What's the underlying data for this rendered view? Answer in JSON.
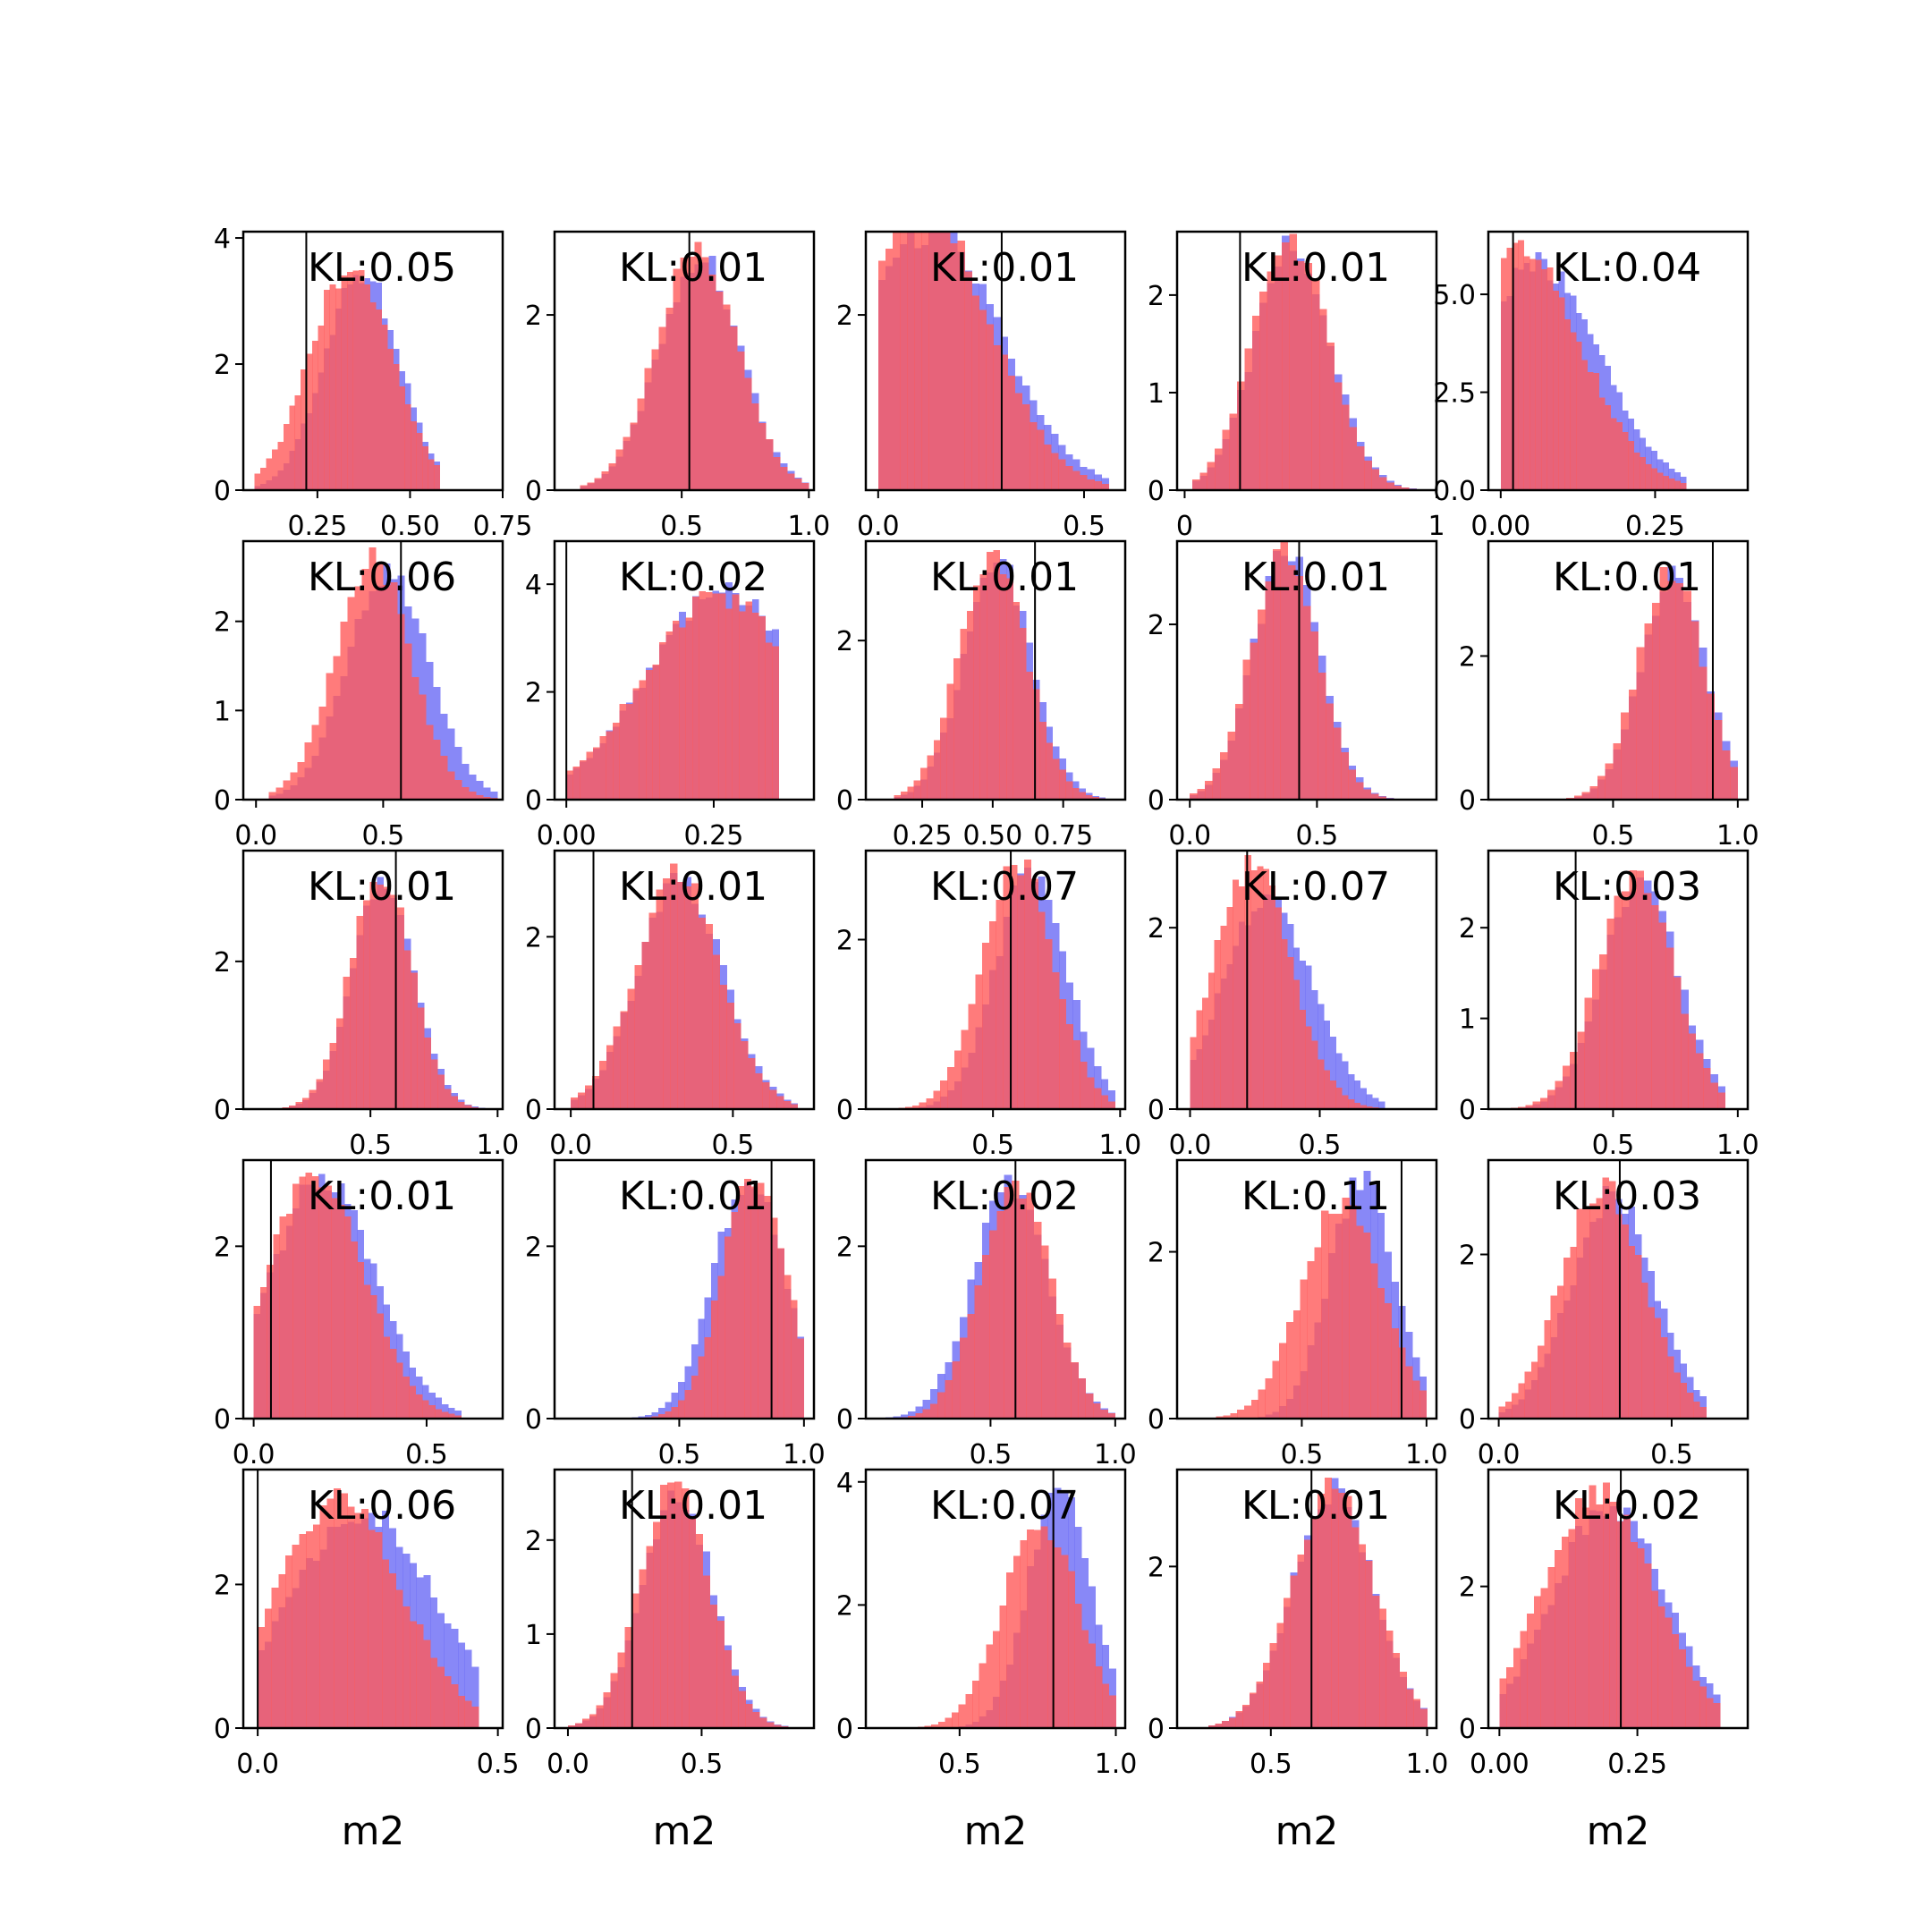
{
  "figure": {
    "colors": {
      "series_a": "#6a6af5",
      "series_b": "#ff5a5a",
      "overlap": "#bf3f77",
      "marker": "#000000"
    }
  },
  "chart_data": {
    "type": "histogram-grid",
    "rows": 5,
    "cols": 5,
    "xlabel": "m2",
    "series": [
      {
        "name": "",
        "color": "#6a6af5",
        "alpha": 0.5
      },
      {
        "name": "",
        "color": "#ff5a5a",
        "alpha": 0.5
      }
    ],
    "panels": [
      {
        "kl": "KL:0.05",
        "xlim": [
          0.05,
          0.75
        ],
        "ylim": [
          0,
          4.1
        ],
        "xticks": [
          0.25,
          0.5,
          0.75
        ],
        "xtick_labels": [
          "0.25",
          "0.50",
          "0.75"
        ],
        "yticks": [
          0,
          2,
          4
        ],
        "ytick_labels": [
          "0",
          "2",
          "4"
        ],
        "marker": 0.22,
        "a": {
          "mu": 0.37,
          "sd": 0.1,
          "peak": 3.5,
          "lo": 0.08,
          "hi": 0.58
        },
        "b": {
          "mu": 0.34,
          "sd": 0.11,
          "peak": 3.6,
          "lo": 0.08,
          "hi": 0.58
        }
      },
      {
        "kl": "KL:0.01",
        "xlim": [
          0.0,
          1.02
        ],
        "ylim": [
          0,
          2.95
        ],
        "xticks": [
          0.5,
          1.0
        ],
        "xtick_labels": [
          "0.5",
          "1.0"
        ],
        "yticks": [
          0,
          2
        ],
        "ytick_labels": [
          "0",
          "2"
        ],
        "marker": 0.53,
        "a": {
          "mu": 0.57,
          "sd": 0.16,
          "peak": 2.7,
          "lo": 0.1,
          "hi": 1.0
        },
        "b": {
          "mu": 0.56,
          "sd": 0.16,
          "peak": 2.75,
          "lo": 0.1,
          "hi": 1.0
        }
      },
      {
        "kl": "KL:0.01",
        "xlim": [
          -0.03,
          0.6
        ],
        "ylim": [
          0,
          2.95
        ],
        "xticks": [
          0.0,
          0.5
        ],
        "xtick_labels": [
          "0.0",
          "0.5"
        ],
        "yticks": [
          2
        ],
        "ytick_labels": [
          "2"
        ],
        "marker": 0.3,
        "a": {
          "mu": 0.13,
          "sd": 0.17,
          "peak": 3.0,
          "lo": 0.0,
          "hi": 0.56
        },
        "b": {
          "mu": 0.11,
          "sd": 0.16,
          "peak": 3.2,
          "lo": 0.0,
          "hi": 0.56
        }
      },
      {
        "kl": "KL:0.01",
        "xlim": [
          -0.03,
          1.0
        ],
        "ylim": [
          0,
          2.65
        ],
        "xticks": [
          0.0,
          1.0
        ],
        "xtick_labels": [
          "0",
          "1"
        ],
        "yticks": [
          0,
          1,
          2
        ],
        "ytick_labels": [
          "0",
          "1",
          "2"
        ],
        "marker": 0.22,
        "a": {
          "mu": 0.43,
          "sd": 0.15,
          "peak": 2.55,
          "lo": 0.03,
          "hi": 0.98
        },
        "b": {
          "mu": 0.42,
          "sd": 0.15,
          "peak": 2.6,
          "lo": 0.03,
          "hi": 0.98
        }
      },
      {
        "kl": "KL:0.04",
        "xlim": [
          -0.02,
          0.4
        ],
        "ylim": [
          0,
          6.6
        ],
        "xticks": [
          0.0,
          0.25
        ],
        "xtick_labels": [
          "0.00",
          "0.25"
        ],
        "yticks": [
          0,
          2.5,
          5.0
        ],
        "ytick_labels": [
          "0.0",
          "2.5",
          "5.0"
        ],
        "marker": 0.02,
        "a": {
          "mu": 0.06,
          "sd": 0.1,
          "peak": 5.8,
          "lo": 0.0,
          "hi": 0.3
        },
        "b": {
          "mu": 0.03,
          "sd": 0.1,
          "peak": 6.2,
          "lo": 0.0,
          "hi": 0.3
        }
      },
      {
        "kl": "KL:0.06",
        "xlim": [
          -0.05,
          0.97
        ],
        "ylim": [
          0,
          2.9
        ],
        "xticks": [
          0.0,
          0.5
        ],
        "xtick_labels": [
          "0.0",
          "0.5"
        ],
        "yticks": [
          0,
          1,
          2
        ],
        "ytick_labels": [
          "0",
          "1",
          "2"
        ],
        "marker": 0.57,
        "a": {
          "mu": 0.52,
          "sd": 0.16,
          "peak": 2.55,
          "lo": 0.05,
          "hi": 0.95
        },
        "b": {
          "mu": 0.46,
          "sd": 0.15,
          "peak": 2.7,
          "lo": 0.05,
          "hi": 0.95
        }
      },
      {
        "kl": "KL:0.02",
        "xlim": [
          -0.02,
          0.42
        ],
        "ylim": [
          0,
          4.8
        ],
        "xticks": [
          0.0,
          0.25
        ],
        "xtick_labels": [
          "0.00",
          "0.25"
        ],
        "yticks": [
          0,
          2,
          4
        ],
        "ytick_labels": [
          "0",
          "2",
          "4"
        ],
        "marker": 0.0,
        "a": {
          "mu": 0.27,
          "sd": 0.13,
          "peak": 3.9,
          "lo": 0.0,
          "hi": 0.36
        },
        "b": {
          "mu": 0.26,
          "sd": 0.13,
          "peak": 3.8,
          "lo": 0.0,
          "hi": 0.36
        }
      },
      {
        "kl": "KL:0.01",
        "xlim": [
          0.05,
          0.97
        ],
        "ylim": [
          0,
          3.25
        ],
        "xticks": [
          0.25,
          0.5,
          0.75
        ],
        "xtick_labels": [
          "0.25",
          "0.50",
          "0.75"
        ],
        "yticks": [
          0,
          2
        ],
        "ytick_labels": [
          "0",
          "2"
        ],
        "marker": 0.65,
        "a": {
          "mu": 0.52,
          "sd": 0.12,
          "peak": 3.0,
          "lo": 0.15,
          "hi": 0.9
        },
        "b": {
          "mu": 0.5,
          "sd": 0.12,
          "peak": 3.1,
          "lo": 0.15,
          "hi": 0.9
        }
      },
      {
        "kl": "KL:0.01",
        "xlim": [
          -0.05,
          0.97
        ],
        "ylim": [
          0,
          2.95
        ],
        "xticks": [
          0.0,
          0.5
        ],
        "xtick_labels": [
          "0.0",
          "0.5"
        ],
        "yticks": [
          0,
          2
        ],
        "ytick_labels": [
          "0",
          "2"
        ],
        "marker": 0.43,
        "a": {
          "mu": 0.38,
          "sd": 0.13,
          "peak": 2.85,
          "lo": 0.0,
          "hi": 0.95
        },
        "b": {
          "mu": 0.37,
          "sd": 0.13,
          "peak": 2.9,
          "lo": 0.0,
          "hi": 0.95
        }
      },
      {
        "kl": "KL:0.01",
        "xlim": [
          0.0,
          1.04
        ],
        "ylim": [
          0,
          3.6
        ],
        "xticks": [
          0.5,
          1.0
        ],
        "xtick_labels": [
          "0.5",
          "1.0"
        ],
        "yticks": [
          0,
          2
        ],
        "ytick_labels": [
          "0",
          "2"
        ],
        "marker": 0.9,
        "a": {
          "mu": 0.74,
          "sd": 0.13,
          "peak": 3.15,
          "lo": 0.0,
          "hi": 1.0
        },
        "b": {
          "mu": 0.73,
          "sd": 0.13,
          "peak": 3.2,
          "lo": 0.0,
          "hi": 1.0
        }
      },
      {
        "kl": "KL:0.01",
        "xlim": [
          0.0,
          1.02
        ],
        "ylim": [
          0,
          3.5
        ],
        "xticks": [
          0.5,
          1.0
        ],
        "xtick_labels": [
          "0.5",
          "1.0"
        ],
        "yticks": [
          0,
          2
        ],
        "ytick_labels": [
          "0",
          "2"
        ],
        "marker": 0.6,
        "a": {
          "mu": 0.55,
          "sd": 0.12,
          "peak": 3.2,
          "lo": 0.1,
          "hi": 0.95
        },
        "b": {
          "mu": 0.54,
          "sd": 0.12,
          "peak": 3.25,
          "lo": 0.1,
          "hi": 0.95
        }
      },
      {
        "kl": "KL:0.01",
        "xlim": [
          -0.05,
          0.75
        ],
        "ylim": [
          0,
          3.0
        ],
        "xticks": [
          0.0,
          0.5
        ],
        "xtick_labels": [
          "0.0",
          "0.5"
        ],
        "yticks": [
          0,
          2
        ],
        "ytick_labels": [
          "0",
          "2"
        ],
        "marker": 0.07,
        "a": {
          "mu": 0.34,
          "sd": 0.13,
          "peak": 2.7,
          "lo": 0.0,
          "hi": 0.7
        },
        "b": {
          "mu": 0.33,
          "sd": 0.13,
          "peak": 2.75,
          "lo": 0.0,
          "hi": 0.7
        }
      },
      {
        "kl": "KL:0.07",
        "xlim": [
          0.0,
          1.02
        ],
        "ylim": [
          0,
          3.05
        ],
        "xticks": [
          0.5,
          1.0
        ],
        "xtick_labels": [
          "0.5",
          "1.0"
        ],
        "yticks": [
          0,
          2
        ],
        "ytick_labels": [
          "0",
          "2"
        ],
        "marker": 0.57,
        "a": {
          "mu": 0.65,
          "sd": 0.14,
          "peak": 2.85,
          "lo": 0.1,
          "hi": 0.98
        },
        "b": {
          "mu": 0.6,
          "sd": 0.14,
          "peak": 2.95,
          "lo": 0.1,
          "hi": 0.98
        }
      },
      {
        "kl": "KL:0.07",
        "xlim": [
          -0.05,
          0.95
        ],
        "ylim": [
          0,
          2.85
        ],
        "xticks": [
          0.0,
          0.5
        ],
        "xtick_labels": [
          "0.0",
          "0.5"
        ],
        "yticks": [
          0,
          2
        ],
        "ytick_labels": [
          "0",
          "2"
        ],
        "marker": 0.22,
        "a": {
          "mu": 0.3,
          "sd": 0.17,
          "peak": 2.35,
          "lo": 0.0,
          "hi": 0.75
        },
        "b": {
          "mu": 0.24,
          "sd": 0.15,
          "peak": 2.7,
          "lo": 0.0,
          "hi": 0.75
        }
      },
      {
        "kl": "KL:0.03",
        "xlim": [
          0.0,
          1.04
        ],
        "ylim": [
          0,
          2.85
        ],
        "xticks": [
          0.5,
          1.0
        ],
        "xtick_labels": [
          "0.5",
          "1.0"
        ],
        "yticks": [
          0,
          1,
          2
        ],
        "ytick_labels": [
          "0",
          "1",
          "2"
        ],
        "marker": 0.35,
        "a": {
          "mu": 0.61,
          "sd": 0.15,
          "peak": 2.55,
          "lo": 0.0,
          "hi": 0.95
        },
        "b": {
          "mu": 0.59,
          "sd": 0.15,
          "peak": 2.65,
          "lo": 0.0,
          "hi": 0.95
        }
      },
      {
        "kl": "KL:0.01",
        "xlim": [
          -0.03,
          0.72
        ],
        "ylim": [
          0,
          3.0
        ],
        "xticks": [
          0.0,
          0.5
        ],
        "xtick_labels": [
          "0.0",
          "0.5"
        ],
        "yticks": [
          0,
          2
        ],
        "ytick_labels": [
          "0",
          "2"
        ],
        "marker": 0.05,
        "a": {
          "mu": 0.2,
          "sd": 0.15,
          "peak": 2.8,
          "lo": 0.0,
          "hi": 0.6
        },
        "b": {
          "mu": 0.18,
          "sd": 0.14,
          "peak": 2.85,
          "lo": 0.0,
          "hi": 0.6
        }
      },
      {
        "kl": "KL:0.01",
        "xlim": [
          0.0,
          1.04
        ],
        "ylim": [
          0,
          3.0
        ],
        "xticks": [
          0.5,
          1.0
        ],
        "xtick_labels": [
          "0.5",
          "1.0"
        ],
        "yticks": [
          0,
          2
        ],
        "ytick_labels": [
          "0",
          "2"
        ],
        "marker": 0.87,
        "a": {
          "mu": 0.78,
          "sd": 0.14,
          "peak": 2.85,
          "lo": 0.15,
          "hi": 1.0
        },
        "b": {
          "mu": 0.8,
          "sd": 0.13,
          "peak": 2.8,
          "lo": 0.15,
          "hi": 1.0
        }
      },
      {
        "kl": "KL:0.02",
        "xlim": [
          0.0,
          1.04
        ],
        "ylim": [
          0,
          3.0
        ],
        "xticks": [
          0.5,
          1.0
        ],
        "xtick_labels": [
          "0.5",
          "1.0"
        ],
        "yticks": [
          0,
          2
        ],
        "ytick_labels": [
          "0",
          "2"
        ],
        "marker": 0.6,
        "a": {
          "mu": 0.58,
          "sd": 0.15,
          "peak": 2.75,
          "lo": 0.05,
          "hi": 1.0
        },
        "b": {
          "mu": 0.6,
          "sd": 0.14,
          "peak": 2.8,
          "lo": 0.05,
          "hi": 1.0
        }
      },
      {
        "kl": "KL:0.11",
        "xlim": [
          0.0,
          1.04
        ],
        "ylim": [
          0,
          3.1
        ],
        "xticks": [
          0.5,
          1.0
        ],
        "xtick_labels": [
          "0.5",
          "1.0"
        ],
        "yticks": [
          0,
          2
        ],
        "ytick_labels": [
          "0",
          "2"
        ],
        "marker": 0.9,
        "a": {
          "mu": 0.74,
          "sd": 0.13,
          "peak": 2.9,
          "lo": 0.1,
          "hi": 1.0
        },
        "b": {
          "mu": 0.66,
          "sd": 0.16,
          "peak": 2.6,
          "lo": 0.1,
          "hi": 1.0
        }
      },
      {
        "kl": "KL:0.03",
        "xlim": [
          -0.03,
          0.72
        ],
        "ylim": [
          0,
          3.15
        ],
        "xticks": [
          0.0,
          0.5
        ],
        "xtick_labels": [
          "0.0",
          "0.5"
        ],
        "yticks": [
          0,
          2
        ],
        "ytick_labels": [
          "0",
          "2"
        ],
        "marker": 0.35,
        "a": {
          "mu": 0.33,
          "sd": 0.12,
          "peak": 2.75,
          "lo": 0.0,
          "hi": 0.6
        },
        "b": {
          "mu": 0.3,
          "sd": 0.12,
          "peak": 2.85,
          "lo": 0.0,
          "hi": 0.6
        }
      },
      {
        "kl": "KL:0.06",
        "xlim": [
          -0.03,
          0.51
        ],
        "ylim": [
          0,
          3.6
        ],
        "xticks": [
          0.0,
          0.5
        ],
        "xtick_labels": [
          "0.0",
          "0.5"
        ],
        "yticks": [
          0,
          2
        ],
        "ytick_labels": [
          "0",
          "2"
        ],
        "marker": 0.0,
        "a": {
          "mu": 0.22,
          "sd": 0.15,
          "peak": 3.05,
          "lo": 0.0,
          "hi": 0.46
        },
        "b": {
          "mu": 0.17,
          "sd": 0.13,
          "peak": 3.2,
          "lo": 0.0,
          "hi": 0.46
        }
      },
      {
        "kl": "KL:0.01",
        "xlim": [
          -0.05,
          0.92
        ],
        "ylim": [
          0,
          2.75
        ],
        "xticks": [
          0.0,
          0.5
        ],
        "xtick_labels": [
          "0.0",
          "0.5"
        ],
        "yticks": [
          0,
          1,
          2
        ],
        "ytick_labels": [
          "0",
          "1",
          "2"
        ],
        "marker": 0.24,
        "a": {
          "mu": 0.41,
          "sd": 0.13,
          "peak": 2.55,
          "lo": 0.0,
          "hi": 0.85
        },
        "b": {
          "mu": 0.4,
          "sd": 0.13,
          "peak": 2.6,
          "lo": 0.0,
          "hi": 0.85
        }
      },
      {
        "kl": "KL:0.07",
        "xlim": [
          0.2,
          1.03
        ],
        "ylim": [
          0,
          4.2
        ],
        "xticks": [
          0.5,
          1.0
        ],
        "xtick_labels": [
          "0.5",
          "1.0"
        ],
        "yticks": [
          0,
          2,
          4
        ],
        "ytick_labels": [
          "0",
          "2",
          "4"
        ],
        "marker": 0.8,
        "a": {
          "mu": 0.82,
          "sd": 0.1,
          "peak": 3.9,
          "lo": 0.3,
          "hi": 1.0
        },
        "b": {
          "mu": 0.76,
          "sd": 0.12,
          "peak": 3.4,
          "lo": 0.3,
          "hi": 1.0
        }
      },
      {
        "kl": "KL:0.01",
        "xlim": [
          0.2,
          1.03
        ],
        "ylim": [
          0,
          3.2
        ],
        "xticks": [
          0.5,
          1.0
        ],
        "xtick_labels": [
          "0.5",
          "1.0"
        ],
        "yticks": [
          0,
          2
        ],
        "ytick_labels": [
          "0",
          "2"
        ],
        "marker": 0.63,
        "a": {
          "mu": 0.7,
          "sd": 0.13,
          "peak": 2.95,
          "lo": 0.3,
          "hi": 1.0
        },
        "b": {
          "mu": 0.7,
          "sd": 0.13,
          "peak": 3.0,
          "lo": 0.3,
          "hi": 1.0
        }
      },
      {
        "kl": "KL:0.02",
        "xlim": [
          -0.02,
          0.45
        ],
        "ylim": [
          0,
          3.65
        ],
        "xticks": [
          0.0,
          0.25
        ],
        "xtick_labels": [
          "0.00",
          "0.25"
        ],
        "yticks": [
          0,
          2
        ],
        "ytick_labels": [
          "0",
          "2"
        ],
        "marker": 0.22,
        "a": {
          "mu": 0.2,
          "sd": 0.1,
          "peak": 3.2,
          "lo": 0.0,
          "hi": 0.4
        },
        "b": {
          "mu": 0.18,
          "sd": 0.1,
          "peak": 3.35,
          "lo": 0.0,
          "hi": 0.4
        }
      }
    ]
  }
}
